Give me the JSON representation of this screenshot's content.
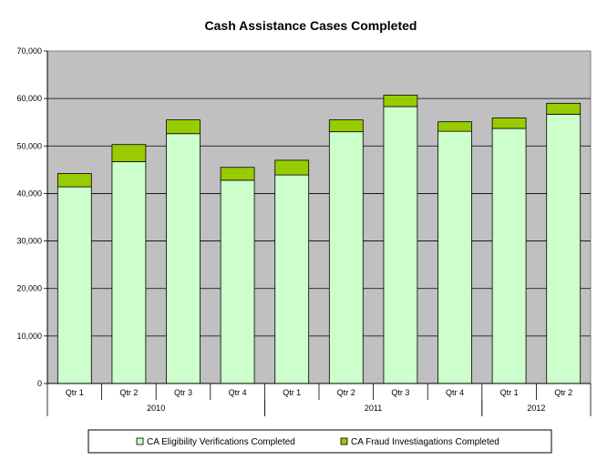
{
  "chart_data": {
    "type": "bar",
    "stacked": true,
    "title": "Cash Assistance Cases Completed",
    "categories": [
      "Qtr 1",
      "Qtr 2",
      "Qtr 3",
      "Qtr 4",
      "Qtr 1",
      "Qtr 2",
      "Qtr 3",
      "Qtr 4",
      "Qtr 1",
      "Qtr 2"
    ],
    "groups": [
      {
        "label": "2010",
        "count": 4
      },
      {
        "label": "2011",
        "count": 4
      },
      {
        "label": "2012",
        "count": 2
      }
    ],
    "series": [
      {
        "name": "CA Eligibility Verifications Completed",
        "color": "#ccffcc",
        "values": [
          41400,
          46700,
          52600,
          42800,
          43900,
          53000,
          58300,
          53100,
          53700,
          56700
        ]
      },
      {
        "name": "CA Fraud Investiagations Completed",
        "color": "#99cc00",
        "values": [
          2800,
          3600,
          2900,
          2700,
          3100,
          2500,
          2400,
          2000,
          2200,
          2300
        ]
      }
    ],
    "ylim": [
      0,
      70000
    ],
    "yticks": [
      "0",
      "10,000",
      "20,000",
      "30,000",
      "40,000",
      "50,000",
      "60,000",
      "70,000"
    ],
    "plot_background": "#c0c0c0",
    "grid": true,
    "legend_position": "bottom"
  }
}
